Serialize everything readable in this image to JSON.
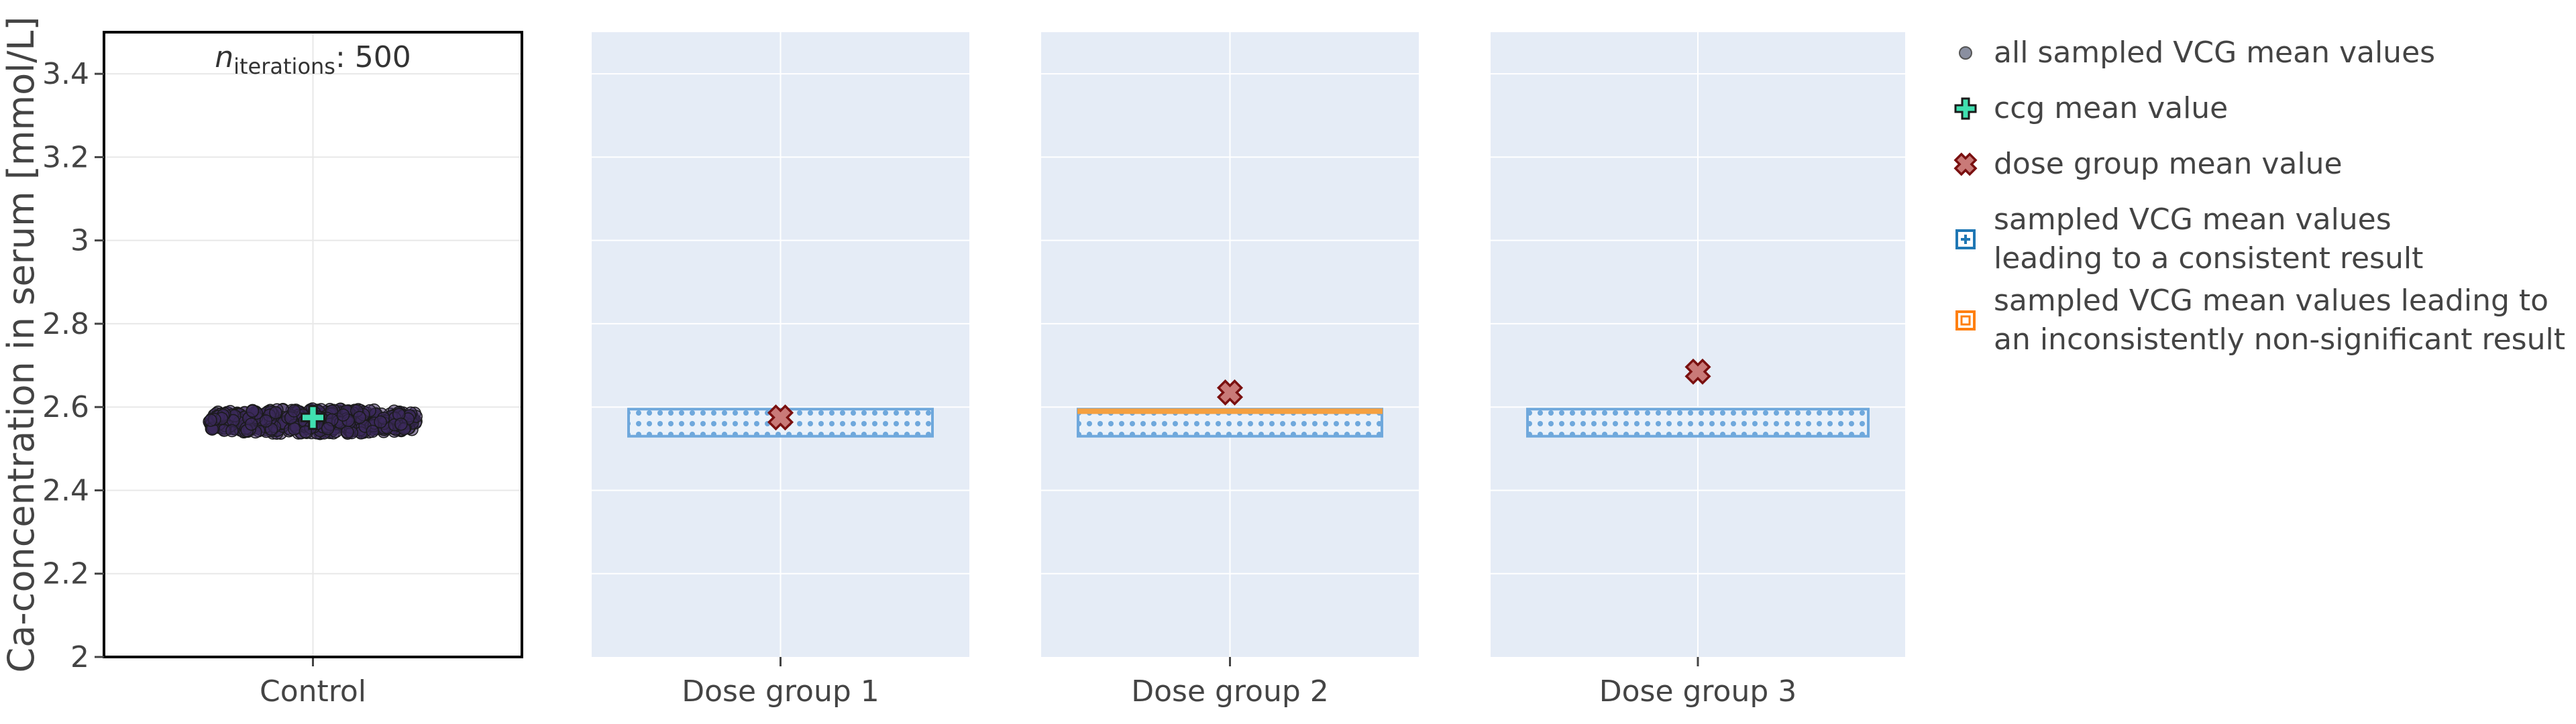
{
  "chart_data": {
    "type": "scatter",
    "ylabel": "Ca-concentration in serum [mmol/L]",
    "ylim": [
      2,
      3.5
    ],
    "yticks": [
      2,
      2.2,
      2.4,
      2.6,
      2.8,
      3,
      3.2,
      3.4
    ],
    "ytick_labels": [
      "2",
      "2.2",
      "2.4",
      "2.6",
      "2.8",
      "3",
      "3.2",
      "3.4"
    ],
    "categories": [
      "Control",
      "Dose group 1",
      "Dose group 2",
      "Dose group 3"
    ],
    "annotation": {
      "var": "n",
      "sub": "iterations",
      "suffix": ": 500"
    },
    "control": {
      "sampled_vcg_mean_min": 2.54,
      "sampled_vcg_mean_max": 2.6,
      "sampled_vcg_mean_center": 2.566,
      "n_iterations": 500,
      "ccg_mean": 2.575
    },
    "dose_groups": [
      {
        "name": "Dose group 1",
        "mean": 2.575,
        "consistent_range": [
          2.53,
          2.595
        ],
        "inconsistent_nonsig_range": null
      },
      {
        "name": "Dose group 2",
        "mean": 2.635,
        "consistent_range": [
          2.53,
          2.585
        ],
        "inconsistent_nonsig_range": [
          2.585,
          2.595
        ]
      },
      {
        "name": "Dose group 3",
        "mean": 2.685,
        "consistent_range": [
          2.53,
          2.595
        ],
        "inconsistent_nonsig_range": null
      }
    ],
    "legend": [
      {
        "key": "all_sampled",
        "lines": [
          "all sampled VCG mean values"
        ]
      },
      {
        "key": "ccg_mean",
        "lines": [
          "ccg mean value"
        ]
      },
      {
        "key": "dose_mean",
        "lines": [
          "dose group mean value"
        ]
      },
      {
        "key": "consistent",
        "lines": [
          "sampled VCG mean values",
          "leading to a consistent result"
        ]
      },
      {
        "key": "inconsistent",
        "lines": [
          "sampled VCG mean values leading to",
          "an inconsistently non-significant result"
        ]
      }
    ],
    "legend_placement": "right",
    "grid": true,
    "colors": {
      "panel_bg": "#e5ecf6",
      "grid": "#ffffff",
      "control_points": "#3d2a5c",
      "control_points_edge": "#1a1a1a",
      "all_sampled_legend": "#8a8fa0",
      "ccg_mean": "#40e0b0",
      "dose_mean_fill": "#c97a78",
      "dose_mean_edge": "#7a1010",
      "consistent": "#6fa8dc",
      "consistent_legend": "#1f77b4",
      "inconsistent": "#f5a040",
      "inconsistent_legend": "#ff7f0e"
    }
  }
}
